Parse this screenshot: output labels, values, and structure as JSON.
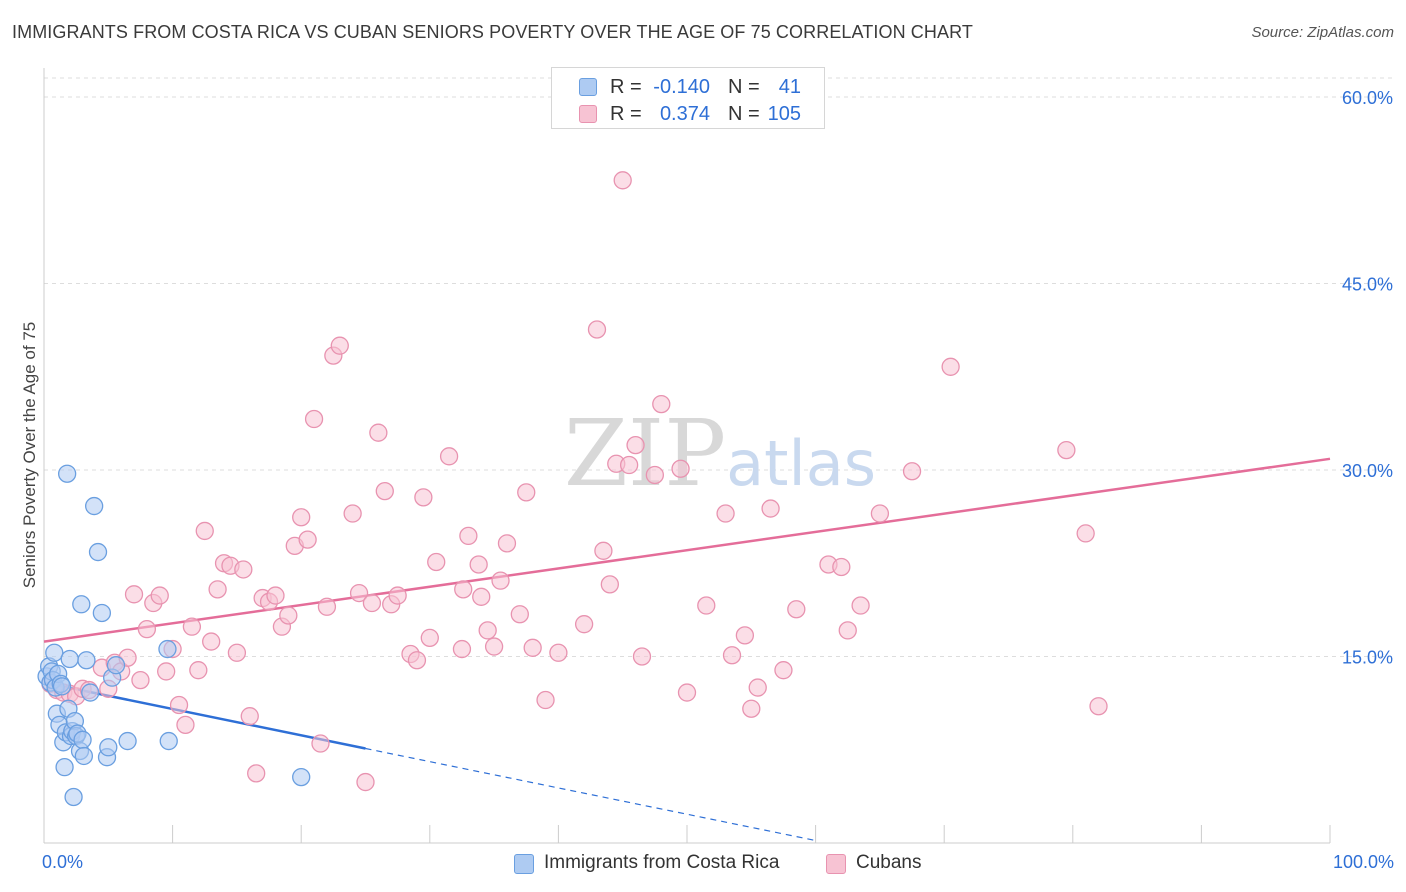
{
  "title": "IMMIGRANTS FROM COSTA RICA VS CUBAN SENIORS POVERTY OVER THE AGE OF 75 CORRELATION CHART",
  "source": "Source: ZipAtlas.com",
  "watermark": "ZIPatlas",
  "legend": {
    "rows": [
      {
        "r_label": "R =",
        "r_value": "-0.140",
        "n_label": "N =",
        "n_value": "41"
      },
      {
        "r_label": "R =",
        "r_value": "0.374",
        "n_label": "N =",
        "n_value": "105"
      }
    ]
  },
  "colors": {
    "blue_fill": "#aecbf2",
    "blue_stroke": "#6a9fe0",
    "blue_line": "#2e6fd6",
    "pink_fill": "#f7c3d3",
    "pink_stroke": "#e893b0",
    "pink_line": "#e46d99",
    "accent_text": "#2e6fd6",
    "grid": "#dddddd"
  },
  "chart_data": {
    "type": "scatter",
    "title": "IMMIGRANTS FROM COSTA RICA VS CUBAN SENIORS POVERTY OVER THE AGE OF 75 CORRELATION CHART",
    "xlabel": "",
    "ylabel": "Seniors Poverty Over the Age of 75",
    "xlim": [
      0,
      100
    ],
    "ylim": [
      0,
      60
    ],
    "x_tick_labels": [
      "0.0%",
      "100.0%"
    ],
    "y_ticks": [
      15,
      30,
      45,
      60
    ],
    "y_tick_labels": [
      "15.0%",
      "30.0%",
      "45.0%",
      "60.0%"
    ],
    "grid": true,
    "legend_position": "top-center",
    "series": [
      {
        "name": "Immigrants from Costa Rica",
        "color": "#6a9fe0",
        "trend": {
          "x": [
            0,
            25
          ],
          "y": [
            12.9,
            7.6
          ],
          "dashed_extension_x": [
            25,
            60
          ],
          "dashed_extension_y": [
            7.6,
            0.2
          ]
        },
        "x": [
          0.2,
          0.4,
          0.5,
          0.6,
          0.7,
          0.8,
          0.9,
          1.0,
          1.1,
          1.2,
          1.3,
          1.4,
          1.5,
          1.6,
          1.7,
          1.8,
          1.9,
          2.0,
          2.1,
          2.2,
          2.3,
          2.4,
          2.5,
          2.6,
          2.8,
          2.9,
          3.0,
          3.1,
          3.3,
          3.6,
          3.9,
          4.2,
          4.5,
          4.9,
          5.0,
          5.3,
          5.6,
          6.5,
          9.6,
          9.7,
          20.0
        ],
        "y": [
          13.4,
          14.2,
          12.9,
          13.8,
          13.1,
          15.3,
          12.5,
          10.4,
          13.6,
          9.5,
          12.8,
          12.6,
          8.1,
          6.1,
          8.9,
          29.7,
          10.8,
          14.8,
          8.6,
          9.0,
          3.7,
          9.8,
          8.6,
          8.8,
          7.4,
          19.2,
          8.3,
          7.0,
          14.7,
          12.1,
          27.1,
          23.4,
          18.5,
          6.9,
          7.7,
          13.3,
          14.3,
          8.2,
          15.6,
          8.2,
          5.3
        ]
      },
      {
        "name": "Cubans",
        "color": "#e893b0",
        "trend": {
          "x": [
            0,
            100
          ],
          "y": [
            16.2,
            30.9
          ]
        },
        "x": [
          0.5,
          1.0,
          1.5,
          2.0,
          2.5,
          3.0,
          3.5,
          4.5,
          5.0,
          5.5,
          6.0,
          6.5,
          7.0,
          7.5,
          8.0,
          8.5,
          9.0,
          9.5,
          10.0,
          10.5,
          11.0,
          11.5,
          12.0,
          12.5,
          13.0,
          13.5,
          14.0,
          14.5,
          15.0,
          15.5,
          16.0,
          16.5,
          17.0,
          17.5,
          18.0,
          18.5,
          19.0,
          19.5,
          20.0,
          20.5,
          21.0,
          21.5,
          22.0,
          22.5,
          23.0,
          24.0,
          24.5,
          25.0,
          25.5,
          26.0,
          26.5,
          27.0,
          27.5,
          28.5,
          29.0,
          29.5,
          30.0,
          30.5,
          31.5,
          32.5,
          32.6,
          33.0,
          33.8,
          34.0,
          34.5,
          35.0,
          35.5,
          36.0,
          37.0,
          37.5,
          38.0,
          39.0,
          40.0,
          42.0,
          43.0,
          43.5,
          44.0,
          44.5,
          45.0,
          45.5,
          46.0,
          46.5,
          47.5,
          48.0,
          49.5,
          50.0,
          51.5,
          53.0,
          53.5,
          54.5,
          55.0,
          55.5,
          56.5,
          57.5,
          58.5,
          61.0,
          62.0,
          62.5,
          63.5,
          65.0,
          67.5,
          70.5,
          79.5,
          81.0,
          82.0
        ],
        "y": [
          12.8,
          12.3,
          12.1,
          12.0,
          11.8,
          12.4,
          12.3,
          14.1,
          12.4,
          14.5,
          13.8,
          14.9,
          20.0,
          13.1,
          17.2,
          19.3,
          19.9,
          13.8,
          15.6,
          11.1,
          9.5,
          17.4,
          13.9,
          25.1,
          16.2,
          20.4,
          22.5,
          22.3,
          15.3,
          22.0,
          10.2,
          5.6,
          19.7,
          19.4,
          19.9,
          17.4,
          18.3,
          23.9,
          26.2,
          24.4,
          34.1,
          8.0,
          19.0,
          39.2,
          40.0,
          26.5,
          20.1,
          4.9,
          19.3,
          33.0,
          28.3,
          19.2,
          19.9,
          15.2,
          14.7,
          27.8,
          16.5,
          22.6,
          31.1,
          15.6,
          20.4,
          24.7,
          22.4,
          19.8,
          17.1,
          15.8,
          21.1,
          24.1,
          18.4,
          28.2,
          15.7,
          11.5,
          15.3,
          17.6,
          41.3,
          23.5,
          20.8,
          30.5,
          53.3,
          30.4,
          32.0,
          15.0,
          29.6,
          35.3,
          30.1,
          12.1,
          19.1,
          26.5,
          15.1,
          16.7,
          10.8,
          12.5,
          26.9,
          13.9,
          18.8,
          22.4,
          22.2,
          17.1,
          19.1,
          26.5,
          29.9,
          38.3,
          31.6,
          24.9,
          11.0
        ]
      }
    ]
  }
}
